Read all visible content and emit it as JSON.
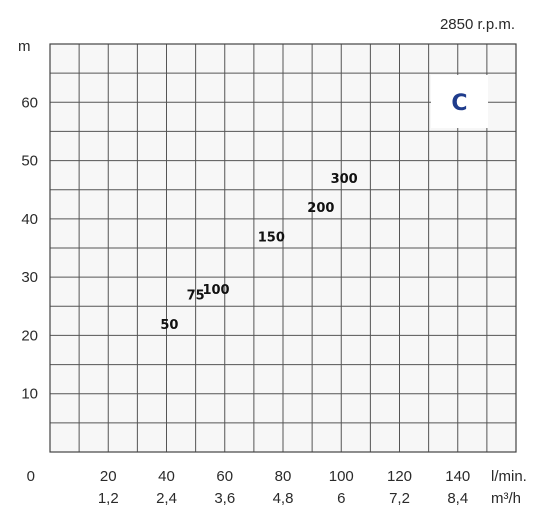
{
  "chart_data": {
    "type": "scatter",
    "title": "2850 r.p.m.",
    "badge": "C",
    "ylabel": "m",
    "xlabel_primary": "l/min.",
    "xlabel_secondary": "m³/h",
    "ylim": [
      0,
      70
    ],
    "xlim": [
      0,
      160
    ],
    "y_ticks": [
      "0",
      "10",
      "20",
      "30",
      "40",
      "50",
      "60"
    ],
    "x_ticks_primary": [
      "20",
      "40",
      "60",
      "80",
      "100",
      "120",
      "140"
    ],
    "x_ticks_secondary": [
      "1,2",
      "2,4",
      "3,6",
      "4,8",
      "6",
      "7,2",
      "8,4"
    ],
    "grid": true,
    "points": [
      {
        "label": "50",
        "x": 41,
        "y": 22
      },
      {
        "label": "75",
        "x": 50,
        "y": 27
      },
      {
        "label": "100",
        "x": 57,
        "y": 28
      },
      {
        "label": "150",
        "x": 76,
        "y": 37
      },
      {
        "label": "200",
        "x": 93,
        "y": 42
      },
      {
        "label": "300",
        "x": 101,
        "y": 47
      }
    ],
    "colors": {
      "grid": "#555555",
      "background": "#f7f7f7",
      "badge_text": "#1f3c8c",
      "text": "#2a2a2a"
    }
  }
}
